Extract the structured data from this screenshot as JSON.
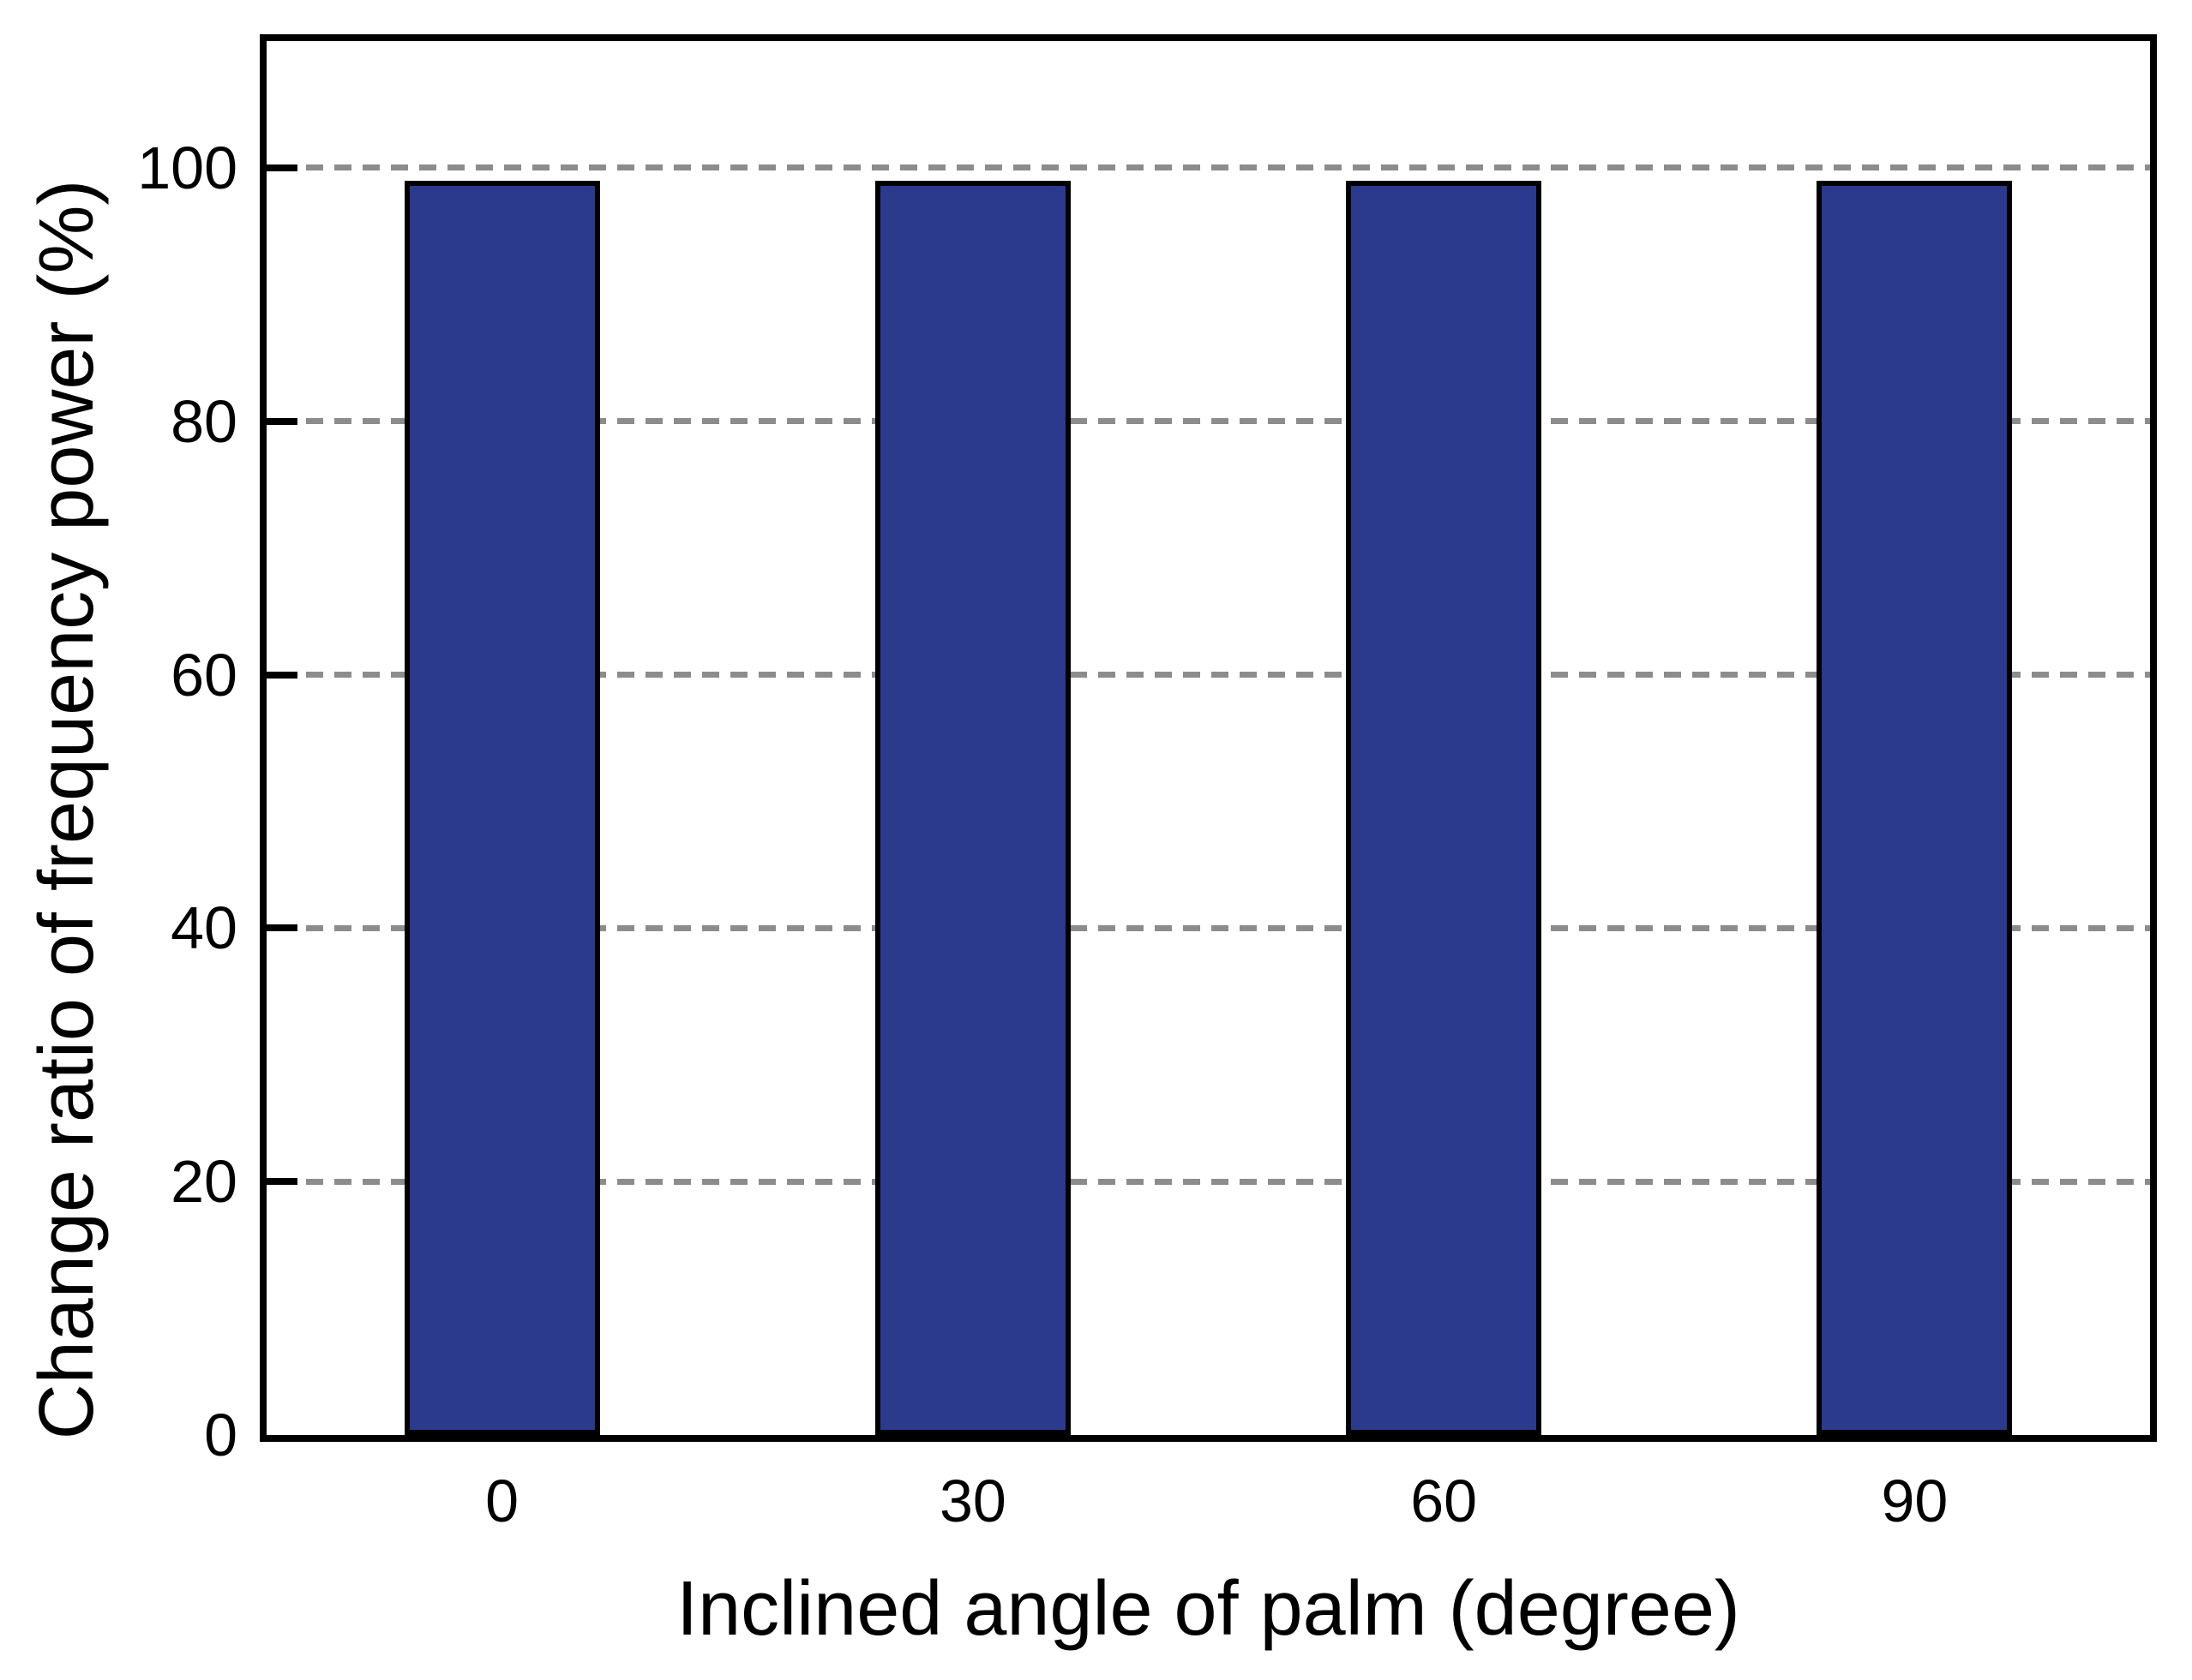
{
  "chart_data": {
    "type": "bar",
    "title": "",
    "xlabel": "Inclined angle of palm (degree)",
    "ylabel": "Change ratio of frequency power (%)",
    "categories": [
      "0",
      "30",
      "60",
      "90"
    ],
    "values": [
      99,
      99,
      99,
      99
    ],
    "ylim": [
      0,
      110
    ],
    "yticks": [
      0,
      20,
      40,
      60,
      80,
      100
    ],
    "grid": "horizontal dashed at yticks above 0",
    "legend_position": "none",
    "colors": {
      "bar_fill": "#2b3a8d",
      "bar_border": "#000000",
      "axis_frame": "#000000",
      "gridline": "#8c8c8c",
      "text": "#000000",
      "background": "#ffffff"
    }
  }
}
